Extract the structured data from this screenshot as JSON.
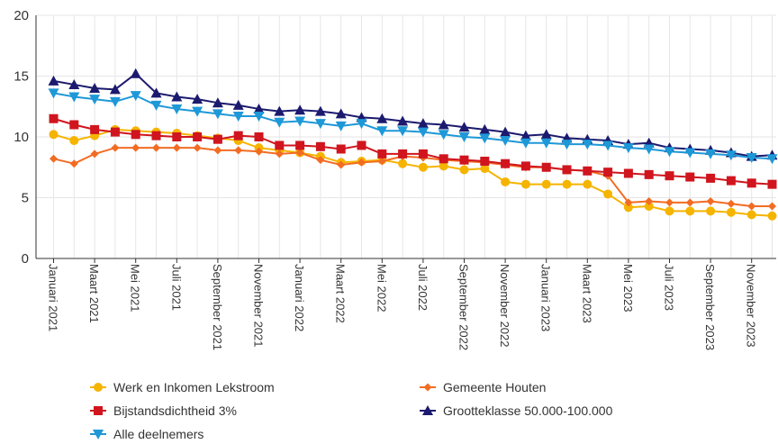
{
  "chart_data": {
    "type": "line",
    "ylim": [
      0,
      20
    ],
    "yticks": [
      0,
      5,
      10,
      15,
      20
    ],
    "grid": true,
    "legend_position": "bottom",
    "x": [
      "Januari 2021",
      "Februari 2021",
      "Maart 2021",
      "April 2021",
      "Mei 2021",
      "Juni 2021",
      "Juli 2021",
      "Augustus 2021",
      "September 2021",
      "Oktober 2021",
      "November 2021",
      "December 2021",
      "Januari 2022",
      "Februari 2022",
      "Maart 2022",
      "April 2022",
      "Mei 2022",
      "Juni 2022",
      "Juli 2022",
      "Augustus 2022",
      "September 2022",
      "Oktober 2022",
      "November 2022",
      "December 2022",
      "Januari 2023",
      "Februari 2023",
      "Maart 2023",
      "April 2023",
      "Mei 2023",
      "Juni 2023",
      "Juli 2023",
      "Augustus 2023",
      "September 2023",
      "Oktober 2023",
      "November 2023",
      "December 2023"
    ],
    "x_tick_labels": [
      "Januari 2021",
      "Maart 2021",
      "Mei 2021",
      "Juli 2021",
      "September 2021",
      "November 2021",
      "Januari 2022",
      "Maart 2022",
      "Mei 2022",
      "Juli 2022",
      "September 2022",
      "November 2022",
      "Januari 2023",
      "Maart 2023",
      "Mei 2023",
      "Juli 2023",
      "September 2023",
      "November 2023"
    ],
    "series": [
      {
        "name": "Werk en Inkomen Lekstroom",
        "color": "#f5b400",
        "marker": "circle",
        "values": [
          10.2,
          9.7,
          10.1,
          10.6,
          10.5,
          10.4,
          10.3,
          10.1,
          9.9,
          9.7,
          9.1,
          8.9,
          8.7,
          8.4,
          7.9,
          8.0,
          8.1,
          7.8,
          7.5,
          7.6,
          7.3,
          7.4,
          6.3,
          6.1,
          6.1,
          6.1,
          6.1,
          5.3,
          4.2,
          4.3,
          3.9,
          3.9,
          3.9,
          3.8,
          3.6,
          3.5
        ]
      },
      {
        "name": "Gemeente Houten",
        "color": "#f26c23",
        "marker": "diamond",
        "values": [
          8.2,
          7.8,
          8.6,
          9.1,
          9.1,
          9.1,
          9.1,
          9.1,
          8.9,
          8.9,
          8.8,
          8.6,
          8.7,
          8.1,
          7.7,
          7.9,
          8.0,
          8.4,
          8.3,
          8.1,
          8.0,
          7.9,
          7.7,
          7.5,
          7.5,
          7.3,
          7.2,
          6.8,
          4.6,
          4.7,
          4.6,
          4.6,
          4.7,
          4.5,
          4.3,
          4.3
        ]
      },
      {
        "name": "Bijstandsdichtheid 3%",
        "color": "#d0151e",
        "marker": "square",
        "values": [
          11.5,
          11.0,
          10.6,
          10.4,
          10.2,
          10.1,
          10.0,
          10.0,
          9.8,
          10.1,
          10.0,
          9.3,
          9.3,
          9.2,
          9.0,
          9.3,
          8.6,
          8.6,
          8.6,
          8.2,
          8.1,
          8.0,
          7.8,
          7.6,
          7.5,
          7.3,
          7.2,
          7.1,
          7.0,
          6.9,
          6.8,
          6.7,
          6.6,
          6.4,
          6.2,
          6.1
        ]
      },
      {
        "name": "Grootteklasse 50.000-100.000",
        "color": "#1c1a6e",
        "marker": "triangle-up",
        "values": [
          14.6,
          14.3,
          14.0,
          13.9,
          15.2,
          13.6,
          13.3,
          13.1,
          12.8,
          12.6,
          12.3,
          12.1,
          12.2,
          12.1,
          11.9,
          11.6,
          11.5,
          11.3,
          11.1,
          11.0,
          10.8,
          10.6,
          10.4,
          10.1,
          10.2,
          9.9,
          9.8,
          9.7,
          9.4,
          9.5,
          9.1,
          9.0,
          8.9,
          8.7,
          8.4,
          8.5
        ]
      },
      {
        "name": "Alle deelnemers",
        "color": "#1e98d7",
        "marker": "triangle-down",
        "values": [
          13.6,
          13.3,
          13.1,
          12.9,
          13.4,
          12.6,
          12.3,
          12.1,
          11.9,
          11.7,
          11.7,
          11.2,
          11.3,
          11.1,
          10.9,
          11.1,
          10.5,
          10.5,
          10.4,
          10.2,
          10.0,
          9.9,
          9.7,
          9.5,
          9.5,
          9.4,
          9.4,
          9.3,
          9.1,
          9.0,
          8.8,
          8.7,
          8.6,
          8.5,
          8.3,
          8.2
        ]
      }
    ]
  }
}
